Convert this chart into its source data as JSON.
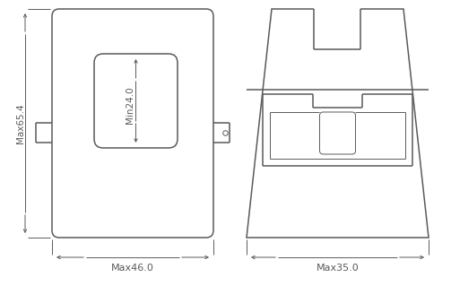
{
  "bg_color": "#ffffff",
  "lc": "#5a5a5a",
  "lw": 1.1,
  "tlw": 0.7,
  "fig_w": 5.03,
  "fig_h": 3.19,
  "label_max65": "Max65.4",
  "label_min24": "Min24.0",
  "label_max46": "Max46.0",
  "label_max35": "Max35.0",
  "fs": 7.5
}
